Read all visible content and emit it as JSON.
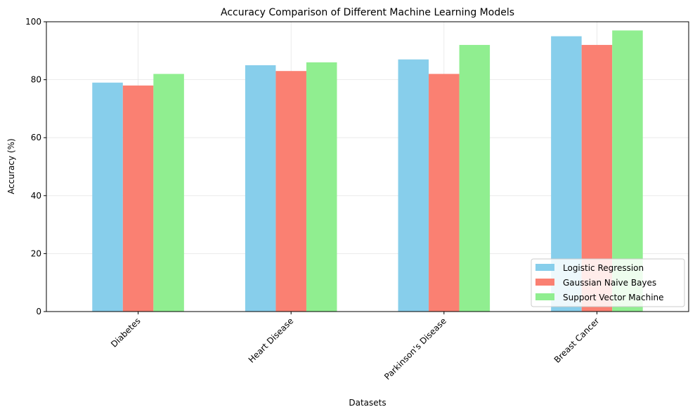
{
  "chart_data": {
    "type": "bar",
    "title": "Accuracy Comparison of Different Machine Learning Models",
    "xlabel": "Datasets",
    "ylabel": "Accuracy (%)",
    "categories": [
      "Diabetes",
      "Heart Disease",
      "Parkinson's Disease",
      "Breast Cancer"
    ],
    "series": [
      {
        "name": "Logistic Regression",
        "values": [
          79,
          85,
          87,
          95
        ],
        "color": "#87CEEB"
      },
      {
        "name": "Gaussian Naive Bayes",
        "values": [
          78,
          83,
          82,
          92
        ],
        "color": "#FA8072"
      },
      {
        "name": "Support Vector Machine",
        "values": [
          82,
          86,
          92,
          97
        ],
        "color": "#90EE90"
      }
    ],
    "ylim": [
      0,
      100
    ],
    "yticks": [
      0,
      20,
      40,
      60,
      80,
      100
    ],
    "grid": true,
    "legend_position": "lower-right"
  }
}
